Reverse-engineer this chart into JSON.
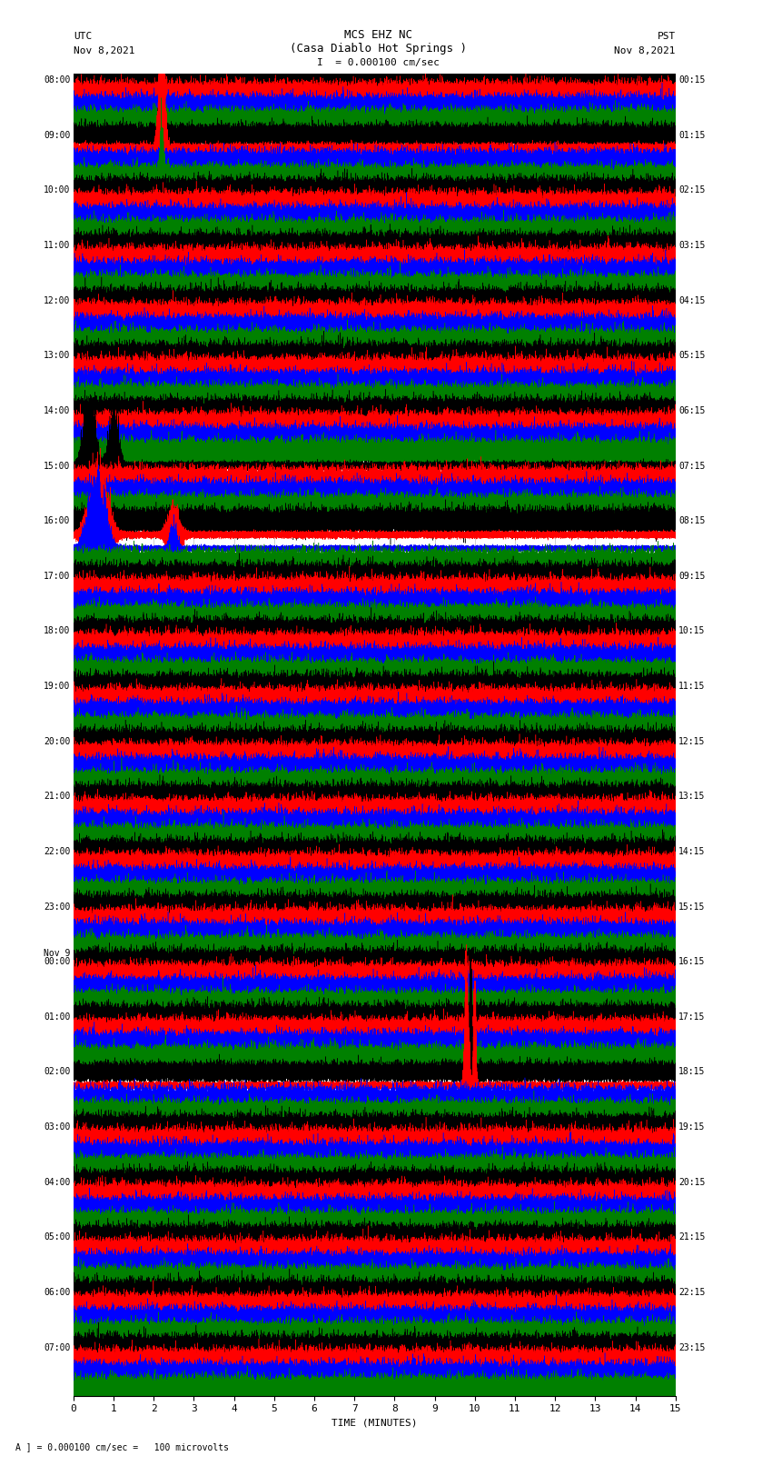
{
  "title_line1": "MCS EHZ NC",
  "title_line2": "(Casa Diablo Hot Springs )",
  "title_line3": "I  = 0.000100 cm/sec",
  "utc_label": "UTC",
  "utc_date": "Nov 8,2021",
  "pst_label": "PST",
  "pst_date": "Nov 8,2021",
  "xlabel": "TIME (MINUTES)",
  "footer": "A ] = 0.000100 cm/sec =   100 microvolts",
  "left_label_list": [
    "08:00",
    "09:00",
    "10:00",
    "11:00",
    "12:00",
    "13:00",
    "14:00",
    "15:00",
    "16:00",
    "17:00",
    "18:00",
    "19:00",
    "20:00",
    "21:00",
    "22:00",
    "23:00",
    "Nov 9\n00:00",
    "01:00",
    "02:00",
    "03:00",
    "04:00",
    "05:00",
    "06:00",
    "07:00"
  ],
  "right_label_list": [
    "00:15",
    "01:15",
    "02:15",
    "03:15",
    "04:15",
    "05:15",
    "06:15",
    "07:15",
    "08:15",
    "09:15",
    "10:15",
    "11:15",
    "12:15",
    "13:15",
    "14:15",
    "15:15",
    "16:15",
    "17:15",
    "18:15",
    "19:15",
    "20:15",
    "21:15",
    "22:15",
    "23:15"
  ],
  "colors": [
    "black",
    "red",
    "blue",
    "green"
  ],
  "n_rows": 96,
  "n_groups": 24,
  "n_minutes": 15,
  "background": "white",
  "grid_color": "#bbbbbb",
  "amp_scale": 0.38
}
